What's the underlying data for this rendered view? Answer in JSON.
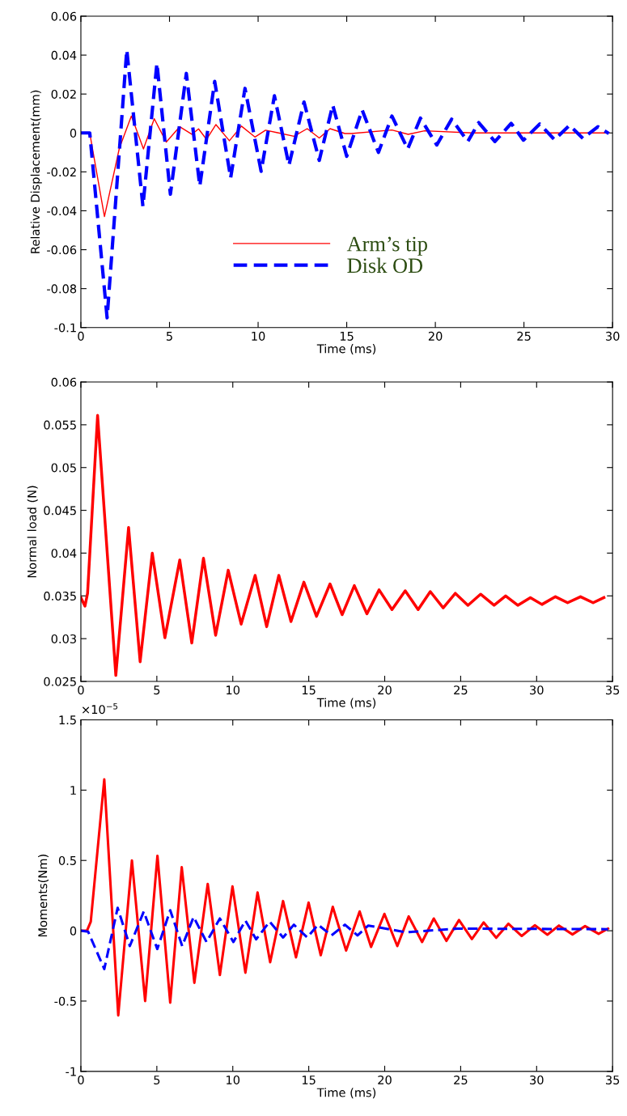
{
  "chart_data": [
    {
      "type": "line",
      "xlabel": "Time (ms)",
      "ylabel": "Relative Displacement(mm)",
      "xlim": [
        0,
        30
      ],
      "ylim": [
        -0.1,
        0.06
      ],
      "xticks": [
        0,
        5,
        10,
        15,
        20,
        25,
        30
      ],
      "yticks": [
        -0.1,
        -0.08,
        -0.06,
        -0.04,
        -0.02,
        0,
        0.02,
        0.04,
        0.06
      ],
      "grid": false,
      "legend": "bottom",
      "series": [
        {
          "name": "Arm’s tip",
          "color": "#ff0000",
          "line_style": "solid",
          "x": [
            0,
            0.5,
            1.33,
            2.17,
            2.85,
            3.53,
            4.14,
            4.82,
            5.58,
            6.26,
            6.64,
            7.09,
            7.62,
            8.38,
            9.06,
            9.82,
            10.42,
            11.1,
            12.02,
            12.77,
            13.45,
            14.06,
            14.9,
            15.26,
            17.55,
            18.47,
            19.39,
            22.1,
            29.79
          ],
          "values": [
            0,
            0,
            -0.043,
            -0.0079,
            0.0087,
            -0.0082,
            0.0073,
            -0.0047,
            0.0032,
            -0.0007,
            0.0021,
            -0.0033,
            0.0043,
            -0.004,
            0.0035,
            -0.0021,
            0.0014,
            0.0001,
            -0.0017,
            0.0022,
            -0.0026,
            0.0022,
            -0.0003,
            -0.0003,
            0.0015,
            -0.0007,
            0.0011,
            0,
            0
          ]
        },
        {
          "name": "Disk OD",
          "color": "#0000ff",
          "line_style": "dashed",
          "x": [
            0,
            0.5,
            1.48,
            2.59,
            3.5,
            4.29,
            5.05,
            5.95,
            6.71,
            7.55,
            8.45,
            9.26,
            10.17,
            10.92,
            11.74,
            12.59,
            13.45,
            14.21,
            15.0,
            15.87,
            16.79,
            17.55,
            18.44,
            19.16,
            20.08,
            20.92,
            21.83,
            22.45,
            23.36,
            24.28,
            24.97,
            25.89,
            26.73,
            27.57,
            28.33,
            29.17,
            29.79
          ],
          "values": [
            0,
            0,
            -0.095,
            0.0427,
            -0.0377,
            0.0358,
            -0.0315,
            0.0306,
            -0.0273,
            0.0265,
            -0.0231,
            0.0229,
            -0.0197,
            0.0191,
            -0.0166,
            0.0159,
            -0.0141,
            0.0143,
            -0.012,
            0.0118,
            -0.01,
            0.0087,
            -0.0082,
            0.0076,
            -0.0062,
            0.0071,
            -0.0044,
            0.0053,
            -0.0044,
            0.0049,
            -0.0037,
            0.0046,
            -0.0035,
            0.0039,
            -0.0028,
            0.0032,
            -0.0003
          ]
        }
      ]
    },
    {
      "type": "line",
      "xlabel": "Time (ms)",
      "ylabel": "Normal load (N)",
      "xlim": [
        0,
        35
      ],
      "ylim": [
        0.025,
        0.06
      ],
      "xticks": [
        0,
        5,
        10,
        15,
        20,
        25,
        30,
        35
      ],
      "yticks": [
        0.025,
        0.03,
        0.035,
        0.04,
        0.045,
        0.05,
        0.055,
        0.06
      ],
      "grid": false,
      "legend": false,
      "series": [
        {
          "color": "#ff0000",
          "line_style": "solid",
          "x": [
            0,
            0.27,
            0.44,
            1.1,
            2.3,
            3.14,
            3.9,
            4.7,
            5.53,
            6.51,
            7.3,
            8.07,
            8.87,
            9.7,
            10.55,
            11.47,
            12.23,
            13.03,
            13.83,
            14.68,
            15.51,
            16.4,
            17.2,
            18.0,
            18.83,
            19.63,
            20.48,
            21.35,
            22.2,
            23.0,
            23.85,
            24.65,
            25.48,
            26.31,
            27.2,
            27.96,
            28.76,
            29.59,
            30.35,
            31.24,
            32.04,
            32.89,
            33.72,
            34.43
          ],
          "values": [
            0.0348,
            0.0338,
            0.0353,
            0.0561,
            0.0257,
            0.043,
            0.0273,
            0.04,
            0.0301,
            0.0392,
            0.0295,
            0.0394,
            0.0304,
            0.038,
            0.0317,
            0.0374,
            0.0314,
            0.0374,
            0.032,
            0.0366,
            0.0326,
            0.0364,
            0.0328,
            0.0362,
            0.0329,
            0.0357,
            0.0334,
            0.0356,
            0.0334,
            0.0355,
            0.0336,
            0.0353,
            0.0339,
            0.0352,
            0.0339,
            0.035,
            0.0339,
            0.0348,
            0.034,
            0.0349,
            0.0342,
            0.0349,
            0.0342,
            0.0348
          ]
        }
      ]
    },
    {
      "type": "line",
      "xlabel": "Time (ms)",
      "ylabel": "Moments(Nm)",
      "annotations": [
        "×10$^{−5}$"
      ],
      "xlim": [
        0,
        35
      ],
      "ylim": [
        -1,
        1.5
      ],
      "xticks": [
        0,
        5,
        10,
        15,
        20,
        25,
        30,
        35
      ],
      "yticks": [
        -1,
        -0.5,
        0,
        0.5,
        1,
        1.5
      ],
      "grid": false,
      "legend": false,
      "series": [
        {
          "color": "#ff0000",
          "line_style": "solid",
          "x": [
            0,
            0.4,
            0.65,
            1.54,
            2.46,
            3.36,
            4.23,
            5.04,
            5.88,
            6.64,
            7.47,
            8.35,
            9.15,
            9.98,
            10.83,
            11.63,
            12.46,
            13.31,
            14.16,
            14.99,
            15.79,
            16.58,
            17.46,
            18.35,
            19.1,
            19.98,
            20.83,
            21.58,
            22.46,
            23.23,
            24.06,
            24.89,
            25.74,
            26.51,
            27.34,
            28.14,
            29.02,
            29.88,
            30.71,
            31.47,
            32.36,
            33.19,
            34.08,
            34.7
          ],
          "values": [
            0,
            0,
            0.065,
            1.076,
            -0.602,
            0.5,
            -0.5,
            0.533,
            -0.511,
            0.452,
            -0.37,
            0.333,
            -0.315,
            0.315,
            -0.298,
            0.272,
            -0.224,
            0.211,
            -0.189,
            0.2,
            -0.174,
            0.17,
            -0.141,
            0.137,
            -0.115,
            0.12,
            -0.109,
            0.102,
            -0.08,
            0.087,
            -0.072,
            0.076,
            -0.059,
            0.059,
            -0.05,
            0.05,
            -0.037,
            0.039,
            -0.028,
            0.037,
            -0.026,
            0.033,
            -0.022,
            0.015
          ]
        },
        {
          "color": "#0000ff",
          "line_style": "dashed",
          "x": [
            0,
            0.48,
            1.54,
            2.42,
            3.22,
            4.14,
            5.03,
            5.88,
            6.67,
            7.42,
            8.27,
            9.15,
            10.04,
            10.83,
            11.54,
            12.42,
            13.31,
            14.02,
            14.9,
            15.61,
            16.5,
            17.38,
            18.21,
            18.92,
            21.4,
            24.77,
            34.7
          ],
          "values": [
            0,
            -0.007,
            -0.272,
            0.163,
            -0.109,
            0.137,
            -0.13,
            0.146,
            -0.109,
            0.098,
            -0.08,
            0.087,
            -0.08,
            0.072,
            -0.061,
            0.065,
            -0.048,
            0.043,
            -0.048,
            0.043,
            -0.033,
            0.043,
            -0.033,
            0.037,
            -0.011,
            0.015,
            0.011
          ]
        }
      ]
    }
  ]
}
